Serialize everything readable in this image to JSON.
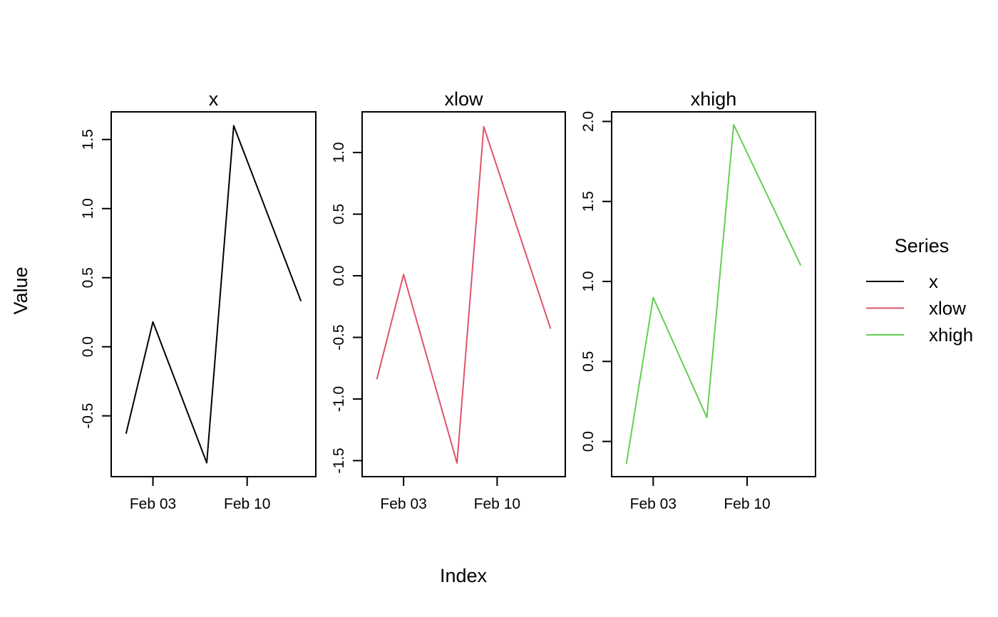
{
  "figure": {
    "background": "#FFFFFF"
  },
  "chart_data": {
    "type": "line",
    "title": "",
    "xlabel": "Index",
    "ylabel": "Value",
    "legend_position": "right",
    "grid": false,
    "x_days": [
      0,
      2,
      6,
      8,
      13
    ],
    "xlim_days": [
      -1.1,
      14.1
    ],
    "x_ticks": [
      {
        "day": 2,
        "label": "Feb 03"
      },
      {
        "day": 9,
        "label": "Feb 10"
      }
    ],
    "panels": [
      {
        "title": "x",
        "color": "#000000",
        "values": [
          -0.63,
          0.18,
          -0.84,
          1.6,
          0.33
        ],
        "ylim": [
          -0.94,
          1.7
        ],
        "yticks": [
          -0.5,
          0.0,
          0.5,
          1.0,
          1.5
        ]
      },
      {
        "title": "xlow",
        "color": "#DF536B",
        "values": [
          -0.84,
          0.01,
          -1.52,
          1.21,
          -0.43
        ],
        "ylim": [
          -1.63,
          1.33
        ],
        "yticks": [
          -1.5,
          -1.0,
          -0.5,
          0.0,
          0.5,
          1.0
        ]
      },
      {
        "title": "xhigh",
        "color": "#61D04F",
        "values": [
          -0.14,
          0.9,
          0.15,
          1.98,
          1.1
        ],
        "ylim": [
          -0.22,
          2.06
        ],
        "yticks": [
          0.0,
          0.5,
          1.0,
          1.5,
          2.0
        ]
      }
    ],
    "legend": {
      "title": "Series",
      "entries": [
        {
          "label": "x",
          "color": "#000000"
        },
        {
          "label": "xlow",
          "color": "#DF536B"
        },
        {
          "label": "xhigh",
          "color": "#61D04F"
        }
      ]
    }
  }
}
